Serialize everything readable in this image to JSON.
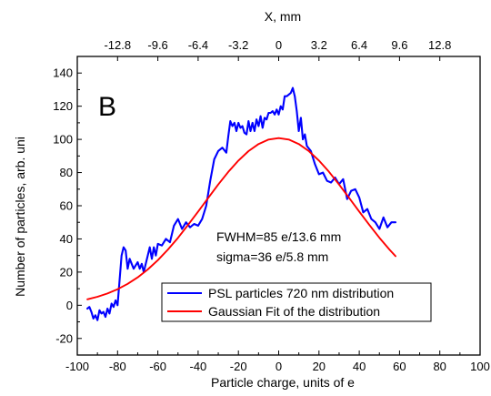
{
  "chart_data": {
    "type": "line",
    "panel_label": "B",
    "xlabel": "Particle charge, units of e",
    "ylabel": "Number of particles, arb. uni",
    "x2label": "X, mm",
    "xlim": [
      -100,
      100
    ],
    "ylim": [
      -30,
      150
    ],
    "x2lim": [
      -16,
      16
    ],
    "xticks": [
      -100,
      -80,
      -60,
      -40,
      -20,
      0,
      20,
      40,
      60,
      80,
      100
    ],
    "yticks": [
      -20,
      0,
      20,
      40,
      60,
      80,
      100,
      120,
      140
    ],
    "x2ticks": [
      -12.8,
      -9.6,
      -6.4,
      -3.2,
      0,
      3.2,
      6.4,
      9.6,
      12.8
    ],
    "grid": false,
    "legend_position": "bottom-center",
    "annotations": [
      "FWHM=85 e/13.6 mm",
      "sigma=36 e/5.8 mm"
    ],
    "series": [
      {
        "name": "PSL particles 720 nm distribution",
        "color": "#0000ff",
        "x": [
          -95,
          -94,
          -93,
          -92,
          -91,
          -90,
          -89,
          -88,
          -87,
          -86,
          -85,
          -84,
          -83,
          -82,
          -81,
          -80,
          -79,
          -78,
          -77,
          -76,
          -75,
          -74,
          -73,
          -72,
          -71,
          -70,
          -69,
          -68,
          -67,
          -66,
          -65,
          -64,
          -63,
          -62,
          -61,
          -60,
          -58,
          -56,
          -54,
          -52,
          -50,
          -48,
          -46,
          -44,
          -42,
          -40,
          -38,
          -36,
          -34,
          -32,
          -30,
          -28,
          -26,
          -25,
          -24,
          -23,
          -22,
          -21,
          -20,
          -19,
          -18,
          -17,
          -16,
          -15,
          -14,
          -13,
          -12,
          -11,
          -10,
          -9,
          -8,
          -7,
          -6,
          -5,
          -4,
          -3,
          -2,
          -1,
          0,
          1,
          2,
          3,
          4,
          5,
          6,
          7,
          8,
          9,
          10,
          11,
          12,
          13,
          14,
          16,
          18,
          20,
          22,
          24,
          26,
          28,
          30,
          32,
          34,
          36,
          38,
          40,
          42,
          44,
          46,
          48,
          50,
          52,
          54,
          56,
          58
        ],
        "y": [
          -2,
          -1,
          -4,
          -8,
          -6,
          -9,
          -3,
          -5,
          -4,
          -7,
          -2,
          -5,
          1,
          -1,
          3,
          0,
          15,
          30,
          35,
          33,
          22,
          28,
          25,
          22,
          24,
          26,
          22,
          25,
          20,
          25,
          30,
          35,
          28,
          35,
          30,
          37,
          36,
          40,
          38,
          48,
          52,
          46,
          50,
          47,
          49,
          48,
          52,
          60,
          75,
          88,
          93,
          95,
          92,
          102,
          111,
          108,
          110,
          105,
          110,
          107,
          108,
          104,
          103,
          111,
          105,
          110,
          105,
          112,
          108,
          114,
          107,
          113,
          112,
          116,
          116,
          117,
          115,
          118,
          115,
          120,
          118,
          126,
          126,
          127,
          128,
          131,
          126,
          117,
          105,
          113,
          100,
          103,
          96,
          93,
          85,
          79,
          80,
          75,
          74,
          77,
          73,
          76,
          64,
          69,
          70,
          65,
          56,
          58,
          52,
          50,
          46,
          53,
          47,
          50,
          50
        ]
      },
      {
        "name": "Gaussian Fit of the distribution",
        "color": "#ff0000",
        "x": [
          -95,
          -90,
          -85,
          -80,
          -75,
          -70,
          -65,
          -60,
          -55,
          -50,
          -45,
          -40,
          -35,
          -30,
          -25,
          -20,
          -15,
          -10,
          -5,
          0,
          5,
          10,
          15,
          20,
          25,
          30,
          35,
          40,
          45,
          50,
          55,
          58
        ],
        "y": [
          3.6,
          5.1,
          7.1,
          9.7,
          12.9,
          16.8,
          21.6,
          27.2,
          33.6,
          40.7,
          48.4,
          56.5,
          64.7,
          72.8,
          80.4,
          87.2,
          92.9,
          97.2,
          99.9,
          100.8,
          99.9,
          97.2,
          92.9,
          87.2,
          80.4,
          72.8,
          64.7,
          56.5,
          48.4,
          40.7,
          33.6,
          29.6
        ]
      }
    ]
  }
}
